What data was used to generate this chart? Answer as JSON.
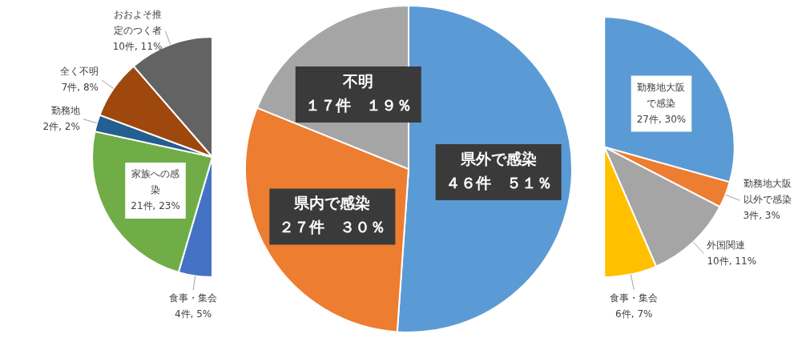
{
  "chart_data": [
    {
      "type": "pie",
      "categories": [
        "食事・集会",
        "家族への感染",
        "勤務地",
        "全く不明",
        "おおよそ推定のつく者"
      ],
      "values": [
        4,
        21,
        2,
        7,
        10
      ],
      "colors": [
        "#4472c4",
        "#70ad47",
        "#255e91",
        "#9e480e",
        "#636363"
      ],
      "value_labels": [
        "4件, 5%",
        "21件, 23%",
        "2件, 2%",
        "7件, 8%",
        "10件, 11%"
      ]
    },
    {
      "type": "pie",
      "categories": [
        "県外で感染",
        "県内で感染",
        "不明"
      ],
      "values": [
        46,
        27,
        17
      ],
      "colors": [
        "#5b9bd5",
        "#ed7d31",
        "#a5a5a5"
      ],
      "value_labels": [
        "４６件　５１％",
        "２７件　３０％",
        "１７件　１９％"
      ]
    },
    {
      "type": "pie",
      "categories": [
        "勤務地大阪で感染",
        "勤務地大阪以外で感染",
        "外国関連",
        "食事・集会"
      ],
      "values": [
        27,
        3,
        10,
        6
      ],
      "colors": [
        "#5b9bd5",
        "#ed7d31",
        "#a5a5a5",
        "#ffc000"
      ],
      "value_labels": [
        "27件, 30%",
        "3件, 3%",
        "10件, 11%",
        "6件, 7%"
      ]
    }
  ]
}
